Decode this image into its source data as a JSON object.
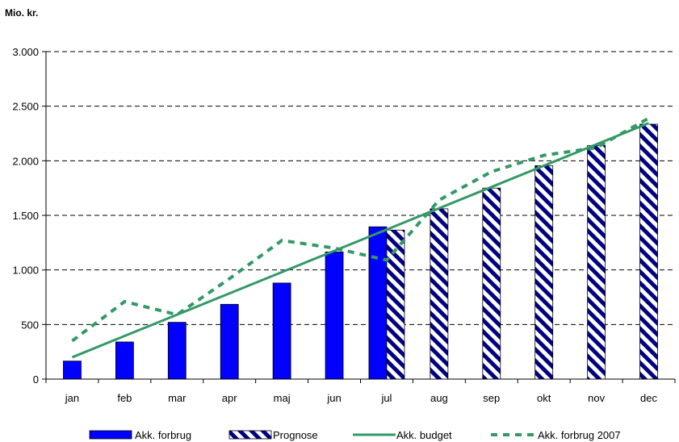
{
  "chart_data": {
    "type": "bar",
    "unit_label": "Mio. kr.",
    "categories": [
      "jan",
      "feb",
      "mar",
      "apr",
      "maj",
      "jun",
      "jul",
      "aug",
      "sep",
      "okt",
      "nov",
      "dec"
    ],
    "ylim": [
      0,
      3000
    ],
    "yticks": [
      0,
      500,
      1000,
      1500,
      2000,
      2500,
      3000
    ],
    "ytick_labels": [
      "0",
      "500",
      "1.000",
      "1.500",
      "2.000",
      "2.500",
      "3.000"
    ],
    "grid": true,
    "legend_position": "bottom",
    "series": [
      {
        "name": "Akk. forbrug",
        "kind": "bar",
        "color": "#0000ff",
        "values": [
          165,
          340,
          520,
          685,
          880,
          1165,
          1395,
          null,
          null,
          null,
          null,
          null
        ]
      },
      {
        "name": "Prognose",
        "kind": "bar-hatched",
        "color": "#000080",
        "values": [
          null,
          null,
          null,
          null,
          null,
          null,
          1365,
          1560,
          1750,
          1955,
          2140,
          2335
        ]
      },
      {
        "name": "Akk. budget",
        "kind": "line",
        "color": "#339966",
        "values": [
          200,
          395,
          590,
          785,
          980,
          1175,
          1370,
          1565,
          1760,
          1955,
          2150,
          2345
        ]
      },
      {
        "name": "Akk. forbrug 2007",
        "kind": "dashed-line",
        "color": "#339966",
        "values": [
          350,
          710,
          590,
          920,
          1270,
          1200,
          1090,
          1640,
          1900,
          2050,
          2120,
          2390
        ]
      }
    ]
  }
}
